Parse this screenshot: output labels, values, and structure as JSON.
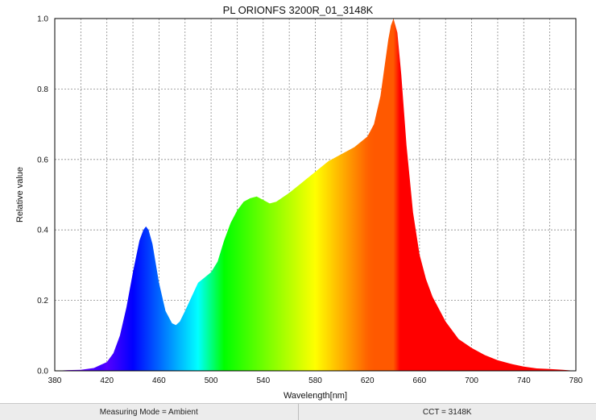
{
  "chart_data": {
    "type": "area",
    "title": "PL ORIONFS 3200R_01_3148K",
    "xlabel": "Wavelength[nm]",
    "ylabel": "Relative value",
    "xlim": [
      380,
      780
    ],
    "ylim": [
      0,
      1.0
    ],
    "xticks": [
      "380",
      "420",
      "460",
      "500",
      "540",
      "580",
      "620",
      "660",
      "700",
      "740",
      "780"
    ],
    "yticks": [
      "0.0",
      "0.2",
      "0.4",
      "0.6",
      "0.8",
      "1.0"
    ],
    "grid": true,
    "fill": "spectral (wavelength colored)",
    "x": [
      380,
      390,
      400,
      410,
      420,
      425,
      430,
      435,
      440,
      445,
      448,
      450,
      452,
      455,
      460,
      465,
      470,
      473,
      476,
      480,
      485,
      490,
      495,
      500,
      505,
      510,
      515,
      520,
      525,
      530,
      535,
      540,
      545,
      550,
      560,
      570,
      580,
      590,
      600,
      610,
      620,
      625,
      630,
      633,
      636,
      638,
      640,
      643,
      646,
      650,
      655,
      660,
      665,
      670,
      680,
      690,
      700,
      710,
      720,
      730,
      740,
      750,
      760,
      770,
      780
    ],
    "y": [
      0.0,
      0.002,
      0.003,
      0.008,
      0.025,
      0.05,
      0.1,
      0.18,
      0.28,
      0.37,
      0.4,
      0.41,
      0.4,
      0.36,
      0.25,
      0.17,
      0.135,
      0.13,
      0.14,
      0.17,
      0.21,
      0.25,
      0.265,
      0.28,
      0.31,
      0.37,
      0.42,
      0.455,
      0.48,
      0.49,
      0.495,
      0.485,
      0.475,
      0.48,
      0.505,
      0.535,
      0.565,
      0.595,
      0.615,
      0.635,
      0.665,
      0.7,
      0.78,
      0.86,
      0.94,
      0.98,
      1.0,
      0.96,
      0.84,
      0.64,
      0.45,
      0.33,
      0.26,
      0.21,
      0.14,
      0.09,
      0.065,
      0.045,
      0.03,
      0.02,
      0.012,
      0.007,
      0.005,
      0.003,
      0.0
    ]
  },
  "status": {
    "measuring_mode": "Measuring Mode = Ambient",
    "cct": "CCT = 3148K"
  }
}
